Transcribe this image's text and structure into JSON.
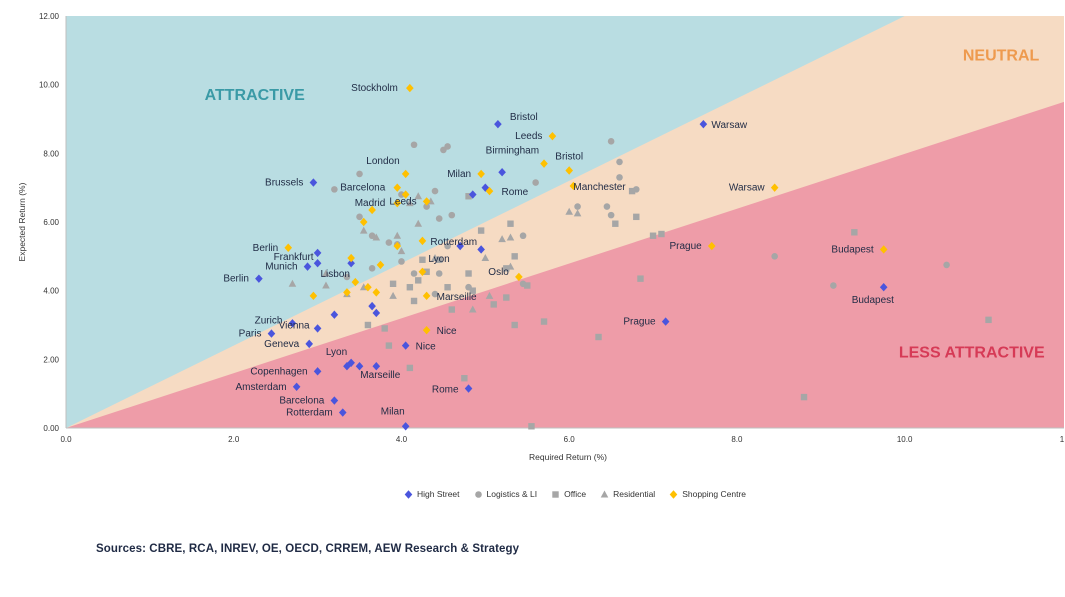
{
  "chart_data": {
    "type": "scatter",
    "xlabel": "Required Return (%)",
    "ylabel": "Expected Return (%)",
    "xlim": [
      0,
      11.9
    ],
    "ylim": [
      0,
      12
    ],
    "x_ticks": [
      "0.0",
      "2.0",
      "4.0",
      "6.0",
      "8.0",
      "10.0",
      "1"
    ],
    "y_ticks": [
      "0.00",
      "2.00",
      "4.00",
      "6.00",
      "8.00",
      "10.00",
      "12.00"
    ],
    "zones": [
      {
        "label": "ATTRACTIVE",
        "color": "#b9dde2",
        "text_color": "#3a9aa6"
      },
      {
        "label": "NEUTRAL",
        "color": "#f6dbc3",
        "text_color": "#ee9a4e"
      },
      {
        "label": "LESS ATTRACTIVE",
        "color": "#ee9ca8",
        "text_color": "#d63a56"
      }
    ],
    "zone_boundaries": {
      "upper": {
        "x": [
          0,
          10.0
        ],
        "y": [
          0,
          12.0
        ]
      },
      "lower": {
        "x": [
          0,
          11.9
        ],
        "y": [
          0,
          9.5
        ]
      }
    },
    "legend_position": "bottom-center",
    "series": [
      {
        "name": "High Street",
        "marker": "diamond",
        "color": "#4a55dd",
        "points": [
          {
            "x": 5.15,
            "y": 8.85,
            "label": "Bristol"
          },
          {
            "x": 7.6,
            "y": 8.85,
            "label": "Warsaw"
          },
          {
            "x": 2.95,
            "y": 7.15,
            "label": "Brussels"
          },
          {
            "x": 5.0,
            "y": 7.0
          },
          {
            "x": 4.85,
            "y": 6.8
          },
          {
            "x": 5.2,
            "y": 7.45
          },
          {
            "x": 3.4,
            "y": 4.8
          },
          {
            "x": 3.2,
            "y": 3.3
          },
          {
            "x": 3.0,
            "y": 5.1,
            "label": "Frankfurt"
          },
          {
            "x": 2.88,
            "y": 4.7,
            "label": "Munich"
          },
          {
            "x": 3.0,
            "y": 4.8
          },
          {
            "x": 2.3,
            "y": 4.35,
            "label": "Berlin"
          },
          {
            "x": 4.7,
            "y": 5.3
          },
          {
            "x": 4.95,
            "y": 5.2
          },
          {
            "x": 3.65,
            "y": 3.55
          },
          {
            "x": 3.7,
            "y": 3.35
          },
          {
            "x": 9.75,
            "y": 4.1,
            "label": "Budapest"
          },
          {
            "x": 7.15,
            "y": 3.1,
            "label": "Prague"
          },
          {
            "x": 2.7,
            "y": 3.05,
            "label": "Zurich"
          },
          {
            "x": 2.45,
            "y": 2.75,
            "label": "Paris"
          },
          {
            "x": 3.0,
            "y": 2.9,
            "label": "Vienna"
          },
          {
            "x": 2.9,
            "y": 2.45,
            "label": "Geneva"
          },
          {
            "x": 4.05,
            "y": 2.4,
            "label": "Nice"
          },
          {
            "x": 3.4,
            "y": 1.9,
            "label": "Lyon"
          },
          {
            "x": 3.35,
            "y": 1.8
          },
          {
            "x": 3.5,
            "y": 1.8
          },
          {
            "x": 3.7,
            "y": 1.8,
            "label": "Marseille"
          },
          {
            "x": 3.0,
            "y": 1.65,
            "label": "Copenhagen"
          },
          {
            "x": 2.75,
            "y": 1.2,
            "label": "Amsterdam"
          },
          {
            "x": 4.8,
            "y": 1.15,
            "label": "Rome"
          },
          {
            "x": 3.2,
            "y": 0.8,
            "label": "Barcelona"
          },
          {
            "x": 3.3,
            "y": 0.45,
            "label": "Rotterdam"
          },
          {
            "x": 4.05,
            "y": 0.05,
            "label": "Milan"
          }
        ]
      },
      {
        "name": "Logistics & LI",
        "marker": "circle",
        "color": "#a6a6a6",
        "points": [
          {
            "x": 4.15,
            "y": 8.25
          },
          {
            "x": 4.5,
            "y": 8.1
          },
          {
            "x": 4.55,
            "y": 8.2
          },
          {
            "x": 6.5,
            "y": 8.35
          },
          {
            "x": 6.6,
            "y": 7.75
          },
          {
            "x": 6.6,
            "y": 7.3
          },
          {
            "x": 3.5,
            "y": 7.4
          },
          {
            "x": 3.2,
            "y": 6.95
          },
          {
            "x": 4.0,
            "y": 6.8
          },
          {
            "x": 4.4,
            "y": 6.9
          },
          {
            "x": 4.6,
            "y": 6.2
          },
          {
            "x": 4.3,
            "y": 6.45
          },
          {
            "x": 4.45,
            "y": 6.1
          },
          {
            "x": 6.1,
            "y": 6.45
          },
          {
            "x": 6.45,
            "y": 6.45
          },
          {
            "x": 6.5,
            "y": 6.2
          },
          {
            "x": 3.5,
            "y": 6.15
          },
          {
            "x": 3.65,
            "y": 5.6
          },
          {
            "x": 3.85,
            "y": 5.4
          },
          {
            "x": 3.95,
            "y": 5.35
          },
          {
            "x": 4.55,
            "y": 5.3
          },
          {
            "x": 5.45,
            "y": 5.6
          },
          {
            "x": 4.0,
            "y": 4.85
          },
          {
            "x": 3.65,
            "y": 4.65
          },
          {
            "x": 4.15,
            "y": 4.5
          },
          {
            "x": 4.45,
            "y": 4.5
          },
          {
            "x": 3.35,
            "y": 4.4
          },
          {
            "x": 5.45,
            "y": 4.2
          },
          {
            "x": 4.8,
            "y": 4.1
          },
          {
            "x": 8.45,
            "y": 5.0
          },
          {
            "x": 10.5,
            "y": 4.75
          },
          {
            "x": 9.15,
            "y": 4.15
          },
          {
            "x": 4.4,
            "y": 3.9
          },
          {
            "x": 5.6,
            "y": 7.15
          },
          {
            "x": 6.8,
            "y": 6.95
          }
        ]
      },
      {
        "name": "Office",
        "marker": "square",
        "color": "#a6a6a6",
        "points": [
          {
            "x": 6.75,
            "y": 6.9
          },
          {
            "x": 6.55,
            "y": 5.95
          },
          {
            "x": 6.8,
            "y": 6.15
          },
          {
            "x": 7.0,
            "y": 5.6
          },
          {
            "x": 7.1,
            "y": 5.65
          },
          {
            "x": 5.3,
            "y": 5.95
          },
          {
            "x": 4.95,
            "y": 5.75
          },
          {
            "x": 4.45,
            "y": 4.9
          },
          {
            "x": 4.8,
            "y": 4.5
          },
          {
            "x": 5.35,
            "y": 5.0
          },
          {
            "x": 5.25,
            "y": 4.65
          },
          {
            "x": 4.25,
            "y": 4.9
          },
          {
            "x": 4.3,
            "y": 4.55
          },
          {
            "x": 4.2,
            "y": 4.3
          },
          {
            "x": 3.9,
            "y": 4.2
          },
          {
            "x": 4.1,
            "y": 4.1
          },
          {
            "x": 4.55,
            "y": 4.1
          },
          {
            "x": 4.85,
            "y": 4.0
          },
          {
            "x": 4.15,
            "y": 3.7
          },
          {
            "x": 4.6,
            "y": 3.45
          },
          {
            "x": 5.1,
            "y": 3.6
          },
          {
            "x": 5.25,
            "y": 3.8
          },
          {
            "x": 5.5,
            "y": 4.15
          },
          {
            "x": 3.6,
            "y": 3.0
          },
          {
            "x": 3.8,
            "y": 2.9
          },
          {
            "x": 5.35,
            "y": 3.0
          },
          {
            "x": 5.7,
            "y": 3.1
          },
          {
            "x": 6.35,
            "y": 2.65
          },
          {
            "x": 6.85,
            "y": 4.35
          },
          {
            "x": 9.4,
            "y": 5.7
          },
          {
            "x": 11.0,
            "y": 3.15
          },
          {
            "x": 8.8,
            "y": 0.9
          },
          {
            "x": 4.75,
            "y": 1.45
          },
          {
            "x": 5.55,
            "y": 0.05
          },
          {
            "x": 4.1,
            "y": 1.75
          },
          {
            "x": 3.85,
            "y": 2.4
          },
          {
            "x": 4.8,
            "y": 6.75
          }
        ]
      },
      {
        "name": "Residential",
        "marker": "triangle",
        "color": "#a6a6a6",
        "points": [
          {
            "x": 4.2,
            "y": 6.75
          },
          {
            "x": 4.35,
            "y": 6.6
          },
          {
            "x": 4.1,
            "y": 6.55
          },
          {
            "x": 3.55,
            "y": 5.75
          },
          {
            "x": 3.7,
            "y": 5.55
          },
          {
            "x": 3.95,
            "y": 5.6
          },
          {
            "x": 4.2,
            "y": 5.95
          },
          {
            "x": 5.2,
            "y": 5.5
          },
          {
            "x": 5.3,
            "y": 5.55
          },
          {
            "x": 6.0,
            "y": 6.3
          },
          {
            "x": 6.1,
            "y": 6.25
          },
          {
            "x": 3.1,
            "y": 4.5
          },
          {
            "x": 2.7,
            "y": 4.2
          },
          {
            "x": 3.1,
            "y": 4.15
          },
          {
            "x": 3.55,
            "y": 4.1
          },
          {
            "x": 3.35,
            "y": 3.9
          },
          {
            "x": 3.9,
            "y": 3.85
          },
          {
            "x": 4.0,
            "y": 5.15
          },
          {
            "x": 4.4,
            "y": 4.95
          },
          {
            "x": 5.0,
            "y": 4.95
          },
          {
            "x": 5.3,
            "y": 4.7
          },
          {
            "x": 5.05,
            "y": 3.85
          },
          {
            "x": 4.85,
            "y": 3.45
          }
        ]
      },
      {
        "name": "Shopping Centre",
        "marker": "diamond",
        "color": "#ffc000",
        "points": [
          {
            "x": 4.1,
            "y": 9.9,
            "label": "Stockholm"
          },
          {
            "x": 5.8,
            "y": 8.5,
            "label": "Leeds"
          },
          {
            "x": 5.7,
            "y": 7.7,
            "label": "Birmingham"
          },
          {
            "x": 6.0,
            "y": 7.5,
            "label": "Bristol"
          },
          {
            "x": 4.05,
            "y": 7.4,
            "label": "London"
          },
          {
            "x": 4.95,
            "y": 7.4,
            "label": "Milan"
          },
          {
            "x": 5.05,
            "y": 6.9,
            "label": "Rome"
          },
          {
            "x": 3.95,
            "y": 7.0,
            "label": "Barcelona"
          },
          {
            "x": 4.05,
            "y": 6.8
          },
          {
            "x": 4.3,
            "y": 6.6,
            "label": "Leeds"
          },
          {
            "x": 3.95,
            "y": 6.55,
            "label": "Madrid"
          },
          {
            "x": 6.05,
            "y": 7.05,
            "label": "Manchester"
          },
          {
            "x": 8.45,
            "y": 7.0,
            "label": "Warsaw"
          },
          {
            "x": 3.65,
            "y": 6.35
          },
          {
            "x": 3.55,
            "y": 6.0
          },
          {
            "x": 4.25,
            "y": 5.45,
            "label": "Rotterdam"
          },
          {
            "x": 3.95,
            "y": 5.3
          },
          {
            "x": 2.65,
            "y": 5.25,
            "label": "Berlin"
          },
          {
            "x": 7.7,
            "y": 5.3,
            "label": "Prague"
          },
          {
            "x": 9.75,
            "y": 5.2,
            "label": "Budapest"
          },
          {
            "x": 3.4,
            "y": 4.95
          },
          {
            "x": 3.75,
            "y": 4.75,
            "label": "Lisbon"
          },
          {
            "x": 4.25,
            "y": 4.55,
            "label": "Lyon"
          },
          {
            "x": 5.4,
            "y": 4.4,
            "label": "Oslo"
          },
          {
            "x": 3.45,
            "y": 4.25
          },
          {
            "x": 3.6,
            "y": 4.1
          },
          {
            "x": 3.7,
            "y": 3.95
          },
          {
            "x": 3.35,
            "y": 3.95
          },
          {
            "x": 2.95,
            "y": 3.85
          },
          {
            "x": 4.3,
            "y": 3.85,
            "label": "Marseille"
          },
          {
            "x": 4.3,
            "y": 2.85,
            "label": "Nice"
          }
        ]
      }
    ]
  },
  "sources": "Sources: CBRE, RCA, INREV, OE, OECD, CRREM, AEW Research & Strategy"
}
